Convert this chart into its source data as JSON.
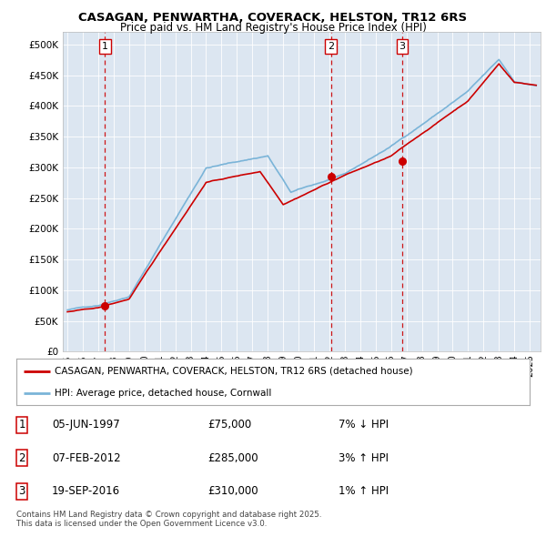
{
  "title": "CASAGAN, PENWARTHA, COVERACK, HELSTON, TR12 6RS",
  "subtitle": "Price paid vs. HM Land Registry's House Price Index (HPI)",
  "background_color": "#dce6f1",
  "plot_bg_color": "#dce6f1",
  "ylim": [
    0,
    520000
  ],
  "yticks": [
    0,
    50000,
    100000,
    150000,
    200000,
    250000,
    300000,
    350000,
    400000,
    450000,
    500000
  ],
  "ytick_labels": [
    "£0",
    "£50K",
    "£100K",
    "£150K",
    "£200K",
    "£250K",
    "£300K",
    "£350K",
    "£400K",
    "£450K",
    "£500K"
  ],
  "xlim_start": 1994.7,
  "xlim_end": 2025.7,
  "xticks": [
    1995,
    1996,
    1997,
    1998,
    1999,
    2000,
    2001,
    2002,
    2003,
    2004,
    2005,
    2006,
    2007,
    2008,
    2009,
    2010,
    2011,
    2012,
    2013,
    2014,
    2015,
    2016,
    2017,
    2018,
    2019,
    2020,
    2021,
    2022,
    2023,
    2024,
    2025
  ],
  "sale_dates": [
    1997.44,
    2012.1,
    2016.72
  ],
  "sale_prices": [
    75000,
    285000,
    310000
  ],
  "sale_labels": [
    "1",
    "2",
    "3"
  ],
  "legend_line1": "CASAGAN, PENWARTHA, COVERACK, HELSTON, TR12 6RS (detached house)",
  "legend_line2": "HPI: Average price, detached house, Cornwall",
  "table_rows": [
    [
      "1",
      "05-JUN-1997",
      "£75,000",
      "7% ↓ HPI"
    ],
    [
      "2",
      "07-FEB-2012",
      "£285,000",
      "3% ↑ HPI"
    ],
    [
      "3",
      "19-SEP-2016",
      "£310,000",
      "1% ↑ HPI"
    ]
  ],
  "footer": "Contains HM Land Registry data © Crown copyright and database right 2025.\nThis data is licensed under the Open Government Licence v3.0.",
  "hpi_color": "#7ab4d8",
  "price_color": "#cc0000",
  "dashed_color": "#cc0000"
}
